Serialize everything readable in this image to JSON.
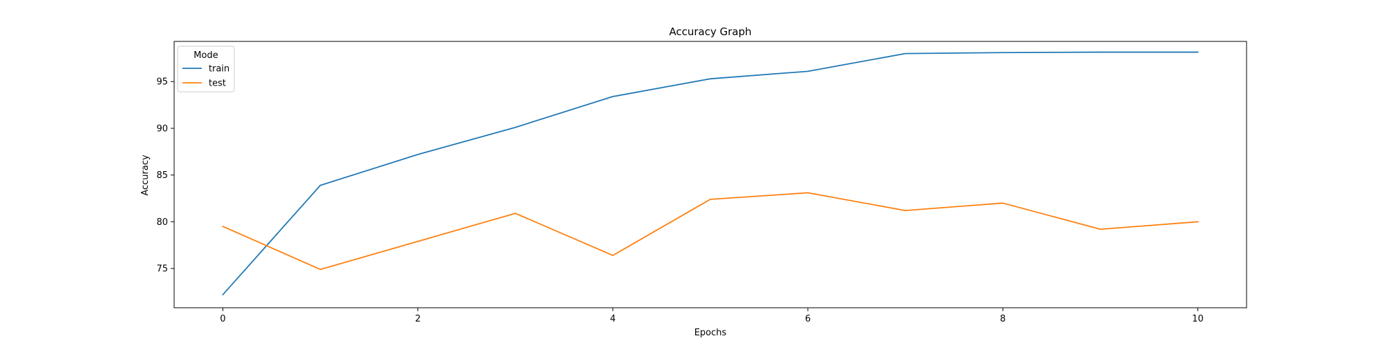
{
  "chart_data": {
    "type": "line",
    "title": "Accuracy Graph",
    "xlabel": "Epochs",
    "ylabel": "Accuracy",
    "x": [
      0,
      1,
      2,
      3,
      4,
      5,
      6,
      7,
      8,
      9,
      10
    ],
    "xlim": [
      -0.5,
      10.5
    ],
    "ylim": [
      70.8,
      99.3
    ],
    "xticks": [
      0,
      2,
      4,
      6,
      8,
      10
    ],
    "yticks": [
      75,
      80,
      85,
      90,
      95
    ],
    "grid": false,
    "legend": {
      "title": "Mode",
      "placement": "upper left"
    },
    "series": [
      {
        "name": "train",
        "color": "#1f77b4",
        "values": [
          72.2,
          83.9,
          87.2,
          90.1,
          93.4,
          95.3,
          96.1,
          98.0,
          98.1,
          98.15,
          98.15
        ]
      },
      {
        "name": "test",
        "color": "#ff7f0e",
        "values": [
          79.5,
          74.9,
          77.9,
          80.9,
          76.4,
          82.4,
          83.1,
          81.2,
          82.0,
          79.2,
          80.0
        ]
      }
    ]
  }
}
